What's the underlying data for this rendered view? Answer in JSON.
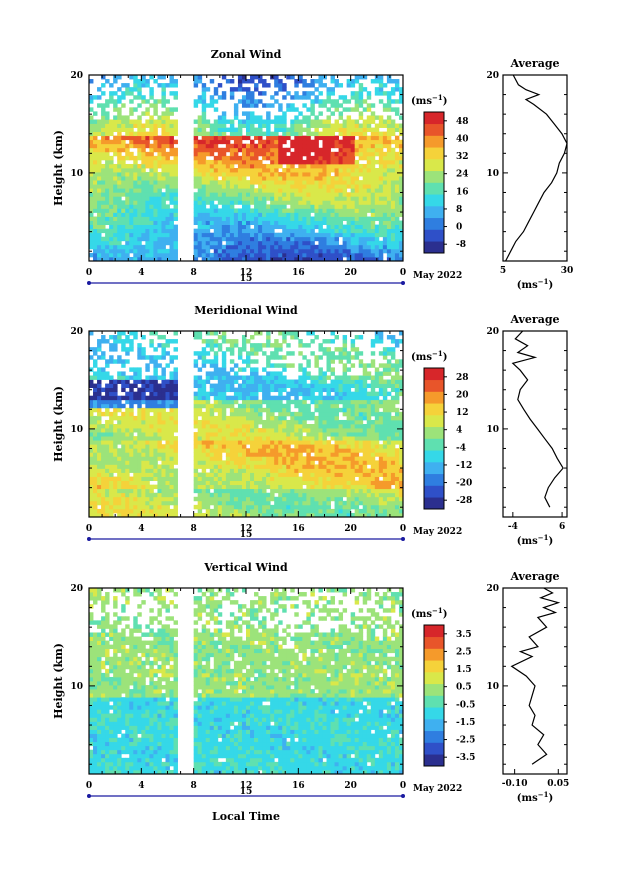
{
  "figure": {
    "x_axis_label": "Local Time",
    "month_label": "May 2022",
    "day_label": "15",
    "height_label": "Height (km)",
    "unit_label": "(ms",
    "unit_exp": "−1",
    "average_title": "Average",
    "x_tick_labels": [
      "0",
      "4",
      "8",
      "12",
      "16",
      "20",
      "0"
    ]
  },
  "colors": {
    "scale": [
      "#2b2f8f",
      "#2f50c8",
      "#2f7ee0",
      "#3fb0f0",
      "#35d8e8",
      "#5fe0b0",
      "#9ce37a",
      "#d9e84a",
      "#f5d23a",
      "#f59a2b",
      "#e8552a",
      "#d7262a"
    ]
  },
  "chart_data": [
    {
      "type": "heatmap",
      "title": "Zonal Wind",
      "ylabel": "Height (km)",
      "xlabel": "",
      "xlim": [
        0,
        24
      ],
      "ylim": [
        1,
        20
      ],
      "y_ticks": [
        "10",
        "20"
      ],
      "colorbar_ticks": [
        "-8",
        "0",
        "8",
        "16",
        "24",
        "32",
        "40",
        "48"
      ],
      "colorbar_range": [
        -12,
        52
      ],
      "average": {
        "title": "Average",
        "xlabel": "(ms−1)",
        "x_ticks": [
          "5",
          "30"
        ],
        "xlim": [
          5,
          30
        ],
        "ylim": [
          1,
          20
        ],
        "profile": [
          [
            6,
            1
          ],
          [
            8,
            2
          ],
          [
            10,
            3
          ],
          [
            13,
            4
          ],
          [
            15,
            5
          ],
          [
            17,
            6
          ],
          [
            19,
            7
          ],
          [
            21,
            8
          ],
          [
            24,
            9
          ],
          [
            26,
            10
          ],
          [
            27,
            11
          ],
          [
            29,
            12
          ],
          [
            30,
            13
          ],
          [
            28,
            14
          ],
          [
            25,
            15
          ],
          [
            22,
            16
          ],
          [
            17,
            17
          ],
          [
            14,
            17.5
          ],
          [
            19,
            18
          ],
          [
            14,
            18.5
          ],
          [
            11,
            19
          ],
          [
            9,
            20
          ]
        ]
      }
    },
    {
      "type": "heatmap",
      "title": "Meridional Wind",
      "ylabel": "Height (km)",
      "xlabel": "",
      "xlim": [
        0,
        24
      ],
      "ylim": [
        1,
        20
      ],
      "y_ticks": [
        "10",
        "20"
      ],
      "colorbar_ticks": [
        "-28",
        "-20",
        "-12",
        "-4",
        "4",
        "12",
        "20",
        "28"
      ],
      "colorbar_range": [
        -32,
        32
      ],
      "average": {
        "title": "Average",
        "xlabel": "(ms−1)",
        "x_ticks": [
          "-4",
          "6"
        ],
        "xlim": [
          -6,
          7
        ],
        "ylim": [
          1,
          20
        ],
        "profile": [
          [
            3.5,
            2
          ],
          [
            2.5,
            3
          ],
          [
            3.2,
            4
          ],
          [
            4.5,
            5
          ],
          [
            6.2,
            6
          ],
          [
            5.0,
            7
          ],
          [
            4.0,
            8
          ],
          [
            2.5,
            9
          ],
          [
            1.0,
            10
          ],
          [
            -0.5,
            11
          ],
          [
            -1.8,
            12
          ],
          [
            -3.0,
            13
          ],
          [
            -2.5,
            14
          ],
          [
            -1.0,
            15
          ],
          [
            -2.5,
            16
          ],
          [
            -4.0,
            16.7
          ],
          [
            0.5,
            17.3
          ],
          [
            -3.0,
            17.8
          ],
          [
            -1.0,
            18.5
          ],
          [
            -3.5,
            19.2
          ],
          [
            -2.0,
            20
          ]
        ]
      }
    },
    {
      "type": "heatmap",
      "title": "Vertical Wind",
      "ylabel": "Height (km)",
      "xlabel": "Local Time",
      "xlim": [
        0,
        24
      ],
      "ylim": [
        1,
        20
      ],
      "y_ticks": [
        "10",
        "20"
      ],
      "colorbar_ticks": [
        "-3.5",
        "-2.5",
        "-1.5",
        "-0.5",
        "0.5",
        "1.5",
        "2.5",
        "3.5"
      ],
      "colorbar_range": [
        -4,
        4
      ],
      "average": {
        "title": "Average",
        "xlabel": "(ms−1)",
        "x_ticks": [
          "-0.10",
          "0.05"
        ],
        "xlim": [
          -0.14,
          0.08
        ],
        "ylim": [
          1,
          20
        ],
        "profile": [
          [
            -0.04,
            2
          ],
          [
            0.01,
            3
          ],
          [
            -0.02,
            4
          ],
          [
            0.0,
            5
          ],
          [
            -0.04,
            6
          ],
          [
            -0.03,
            7
          ],
          [
            -0.05,
            8
          ],
          [
            -0.04,
            9
          ],
          [
            -0.03,
            10
          ],
          [
            -0.06,
            11
          ],
          [
            -0.11,
            12
          ],
          [
            -0.04,
            13
          ],
          [
            -0.08,
            13.5
          ],
          [
            -0.02,
            14
          ],
          [
            -0.05,
            15
          ],
          [
            0.01,
            16
          ],
          [
            -0.02,
            17
          ],
          [
            0.04,
            17.5
          ],
          [
            0.0,
            18
          ],
          [
            0.05,
            18.5
          ],
          [
            -0.01,
            19
          ],
          [
            0.03,
            19.5
          ],
          [
            0.0,
            20
          ]
        ]
      }
    }
  ]
}
